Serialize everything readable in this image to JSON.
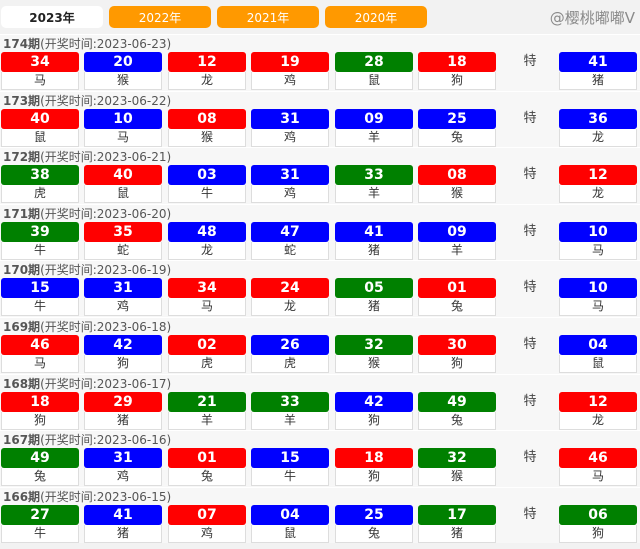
{
  "tabs": [
    "2023年",
    "2022年",
    "2021年",
    "2020年"
  ],
  "active_tab": 0,
  "special_label": "特",
  "colors": {
    "r": "#ff0000",
    "b": "#0000ff",
    "g": "#008000"
  },
  "watermark": "@樱桃嘟嘟V",
  "draws": [
    {
      "period": "174期",
      "time": "(开奖时间:2023-06-23)",
      "balls": [
        [
          "34",
          "r",
          "马"
        ],
        [
          "20",
          "b",
          "猴"
        ],
        [
          "12",
          "r",
          "龙"
        ],
        [
          "19",
          "r",
          "鸡"
        ],
        [
          "28",
          "g",
          "鼠"
        ],
        [
          "18",
          "r",
          "狗"
        ]
      ],
      "special": [
        "41",
        "b",
        "猪"
      ]
    },
    {
      "period": "173期",
      "time": "(开奖时间:2023-06-22)",
      "balls": [
        [
          "40",
          "r",
          "鼠"
        ],
        [
          "10",
          "b",
          "马"
        ],
        [
          "08",
          "r",
          "猴"
        ],
        [
          "31",
          "b",
          "鸡"
        ],
        [
          "09",
          "b",
          "羊"
        ],
        [
          "25",
          "b",
          "兔"
        ]
      ],
      "special": [
        "36",
        "b",
        "龙"
      ]
    },
    {
      "period": "172期",
      "time": "(开奖时间:2023-06-21)",
      "balls": [
        [
          "38",
          "g",
          "虎"
        ],
        [
          "40",
          "r",
          "鼠"
        ],
        [
          "03",
          "b",
          "牛"
        ],
        [
          "31",
          "b",
          "鸡"
        ],
        [
          "33",
          "g",
          "羊"
        ],
        [
          "08",
          "r",
          "猴"
        ]
      ],
      "special": [
        "12",
        "r",
        "龙"
      ]
    },
    {
      "period": "171期",
      "time": "(开奖时间:2023-06-20)",
      "balls": [
        [
          "39",
          "g",
          "牛"
        ],
        [
          "35",
          "r",
          "蛇"
        ],
        [
          "48",
          "b",
          "龙"
        ],
        [
          "47",
          "b",
          "蛇"
        ],
        [
          "41",
          "b",
          "猪"
        ],
        [
          "09",
          "b",
          "羊"
        ]
      ],
      "special": [
        "10",
        "b",
        "马"
      ]
    },
    {
      "period": "170期",
      "time": "(开奖时间:2023-06-19)",
      "balls": [
        [
          "15",
          "b",
          "牛"
        ],
        [
          "31",
          "b",
          "鸡"
        ],
        [
          "34",
          "r",
          "马"
        ],
        [
          "24",
          "r",
          "龙"
        ],
        [
          "05",
          "g",
          "猪"
        ],
        [
          "01",
          "r",
          "兔"
        ]
      ],
      "special": [
        "10",
        "b",
        "马"
      ]
    },
    {
      "period": "169期",
      "time": "(开奖时间:2023-06-18)",
      "balls": [
        [
          "46",
          "r",
          "马"
        ],
        [
          "42",
          "b",
          "狗"
        ],
        [
          "02",
          "r",
          "虎"
        ],
        [
          "26",
          "b",
          "虎"
        ],
        [
          "32",
          "g",
          "猴"
        ],
        [
          "30",
          "r",
          "狗"
        ]
      ],
      "special": [
        "04",
        "b",
        "鼠"
      ]
    },
    {
      "period": "168期",
      "time": "(开奖时间:2023-06-17)",
      "balls": [
        [
          "18",
          "r",
          "狗"
        ],
        [
          "29",
          "r",
          "猪"
        ],
        [
          "21",
          "g",
          "羊"
        ],
        [
          "33",
          "g",
          "羊"
        ],
        [
          "42",
          "b",
          "狗"
        ],
        [
          "49",
          "g",
          "兔"
        ]
      ],
      "special": [
        "12",
        "r",
        "龙"
      ]
    },
    {
      "period": "167期",
      "time": "(开奖时间:2023-06-16)",
      "balls": [
        [
          "49",
          "g",
          "兔"
        ],
        [
          "31",
          "b",
          "鸡"
        ],
        [
          "01",
          "r",
          "兔"
        ],
        [
          "15",
          "b",
          "牛"
        ],
        [
          "18",
          "r",
          "狗"
        ],
        [
          "32",
          "g",
          "猴"
        ]
      ],
      "special": [
        "46",
        "r",
        "马"
      ]
    },
    {
      "period": "166期",
      "time": "(开奖时间:2023-06-15)",
      "balls": [
        [
          "27",
          "g",
          "牛"
        ],
        [
          "41",
          "b",
          "猪"
        ],
        [
          "07",
          "r",
          "鸡"
        ],
        [
          "04",
          "b",
          "鼠"
        ],
        [
          "25",
          "b",
          "兔"
        ],
        [
          "17",
          "g",
          "猪"
        ]
      ],
      "special": [
        "06",
        "g",
        "狗"
      ]
    }
  ]
}
